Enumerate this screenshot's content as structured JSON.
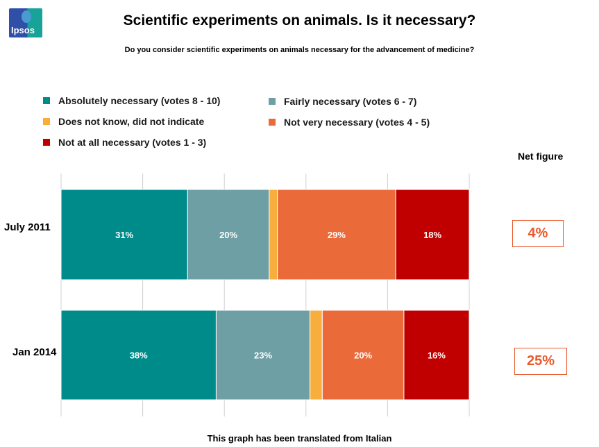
{
  "logo": {
    "text": "Ipsos"
  },
  "title": "Scientific experiments on animals. Is it necessary?",
  "subtitle": "Do you consider scientific experiments on animals necessary for the advancement of medicine?",
  "net_label": "Net figure",
  "footer": "This graph has been translated from Italian",
  "colors": {
    "absolutely": "#008b8b",
    "fairly": "#6e9fa4",
    "dk": "#f7ae3c",
    "not_very": "#ea6a3a",
    "not_at_all": "#c00000",
    "net": "#e8592b"
  },
  "chart_data": {
    "type": "bar",
    "orientation": "horizontal-stacked-100",
    "title": "Scientific experiments on animals. Is it necessary?",
    "categories": [
      "July 2011",
      "Jan 2014"
    ],
    "xlim": [
      0,
      100
    ],
    "grid": true,
    "legend_placement": "top",
    "series": [
      {
        "name": "Absolutely necessary (votes 8 - 10)",
        "color": "#008b8b",
        "values": [
          31,
          38
        ],
        "labels": [
          "31%",
          "38%"
        ]
      },
      {
        "name": "Fairly necessary (votes 6 - 7)",
        "color": "#6e9fa4",
        "values": [
          20,
          23
        ],
        "labels": [
          "20%",
          "23%"
        ]
      },
      {
        "name": "Does not know, did not indicate",
        "color": "#f7ae3c",
        "values": [
          2,
          3
        ],
        "labels": [
          "",
          ""
        ]
      },
      {
        "name": "Not very necessary (votes 4 - 5)",
        "color": "#ea6a3a",
        "values": [
          29,
          20
        ],
        "labels": [
          "29%",
          "20%"
        ]
      },
      {
        "name": "Not at all necessary (votes 1 - 3)",
        "color": "#c00000",
        "values": [
          18,
          16
        ],
        "labels": [
          "18%",
          "16%"
        ]
      }
    ],
    "net_figures": [
      "4%",
      "25%"
    ]
  }
}
